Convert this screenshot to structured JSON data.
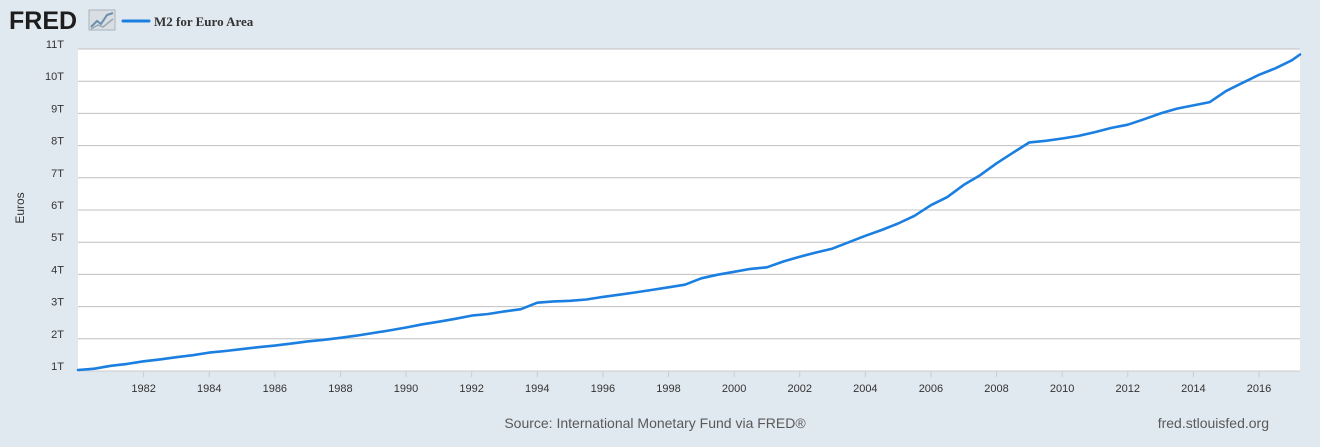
{
  "header": {
    "logo_text": "FRED",
    "legend_label": "M2 for Euro Area"
  },
  "footer": {
    "source": "Source: International Monetary Fund via FRED®",
    "site": "fred.stlouisfed.org"
  },
  "colors": {
    "series": "#1a7fe0",
    "background": "#e1e9f0",
    "plot": "#ffffff",
    "grid": "#c0c0c0"
  },
  "chart_data": {
    "type": "line",
    "title": "",
    "xlabel": "",
    "ylabel": "Euros",
    "xlim": [
      1980.0,
      2017.25
    ],
    "ylim": [
      1,
      11
    ],
    "y_ticks": [
      {
        "value": 1,
        "label": "1T"
      },
      {
        "value": 2,
        "label": "2T"
      },
      {
        "value": 3,
        "label": "3T"
      },
      {
        "value": 4,
        "label": "4T"
      },
      {
        "value": 5,
        "label": "5T"
      },
      {
        "value": 6,
        "label": "6T"
      },
      {
        "value": 7,
        "label": "7T"
      },
      {
        "value": 8,
        "label": "8T"
      },
      {
        "value": 9,
        "label": "9T"
      },
      {
        "value": 10,
        "label": "10T"
      },
      {
        "value": 11,
        "label": "11T"
      }
    ],
    "x_ticks": [
      {
        "value": 1982,
        "label": "1982"
      },
      {
        "value": 1984,
        "label": "1984"
      },
      {
        "value": 1986,
        "label": "1986"
      },
      {
        "value": 1988,
        "label": "1988"
      },
      {
        "value": 1990,
        "label": "1990"
      },
      {
        "value": 1992,
        "label": "1992"
      },
      {
        "value": 1994,
        "label": "1994"
      },
      {
        "value": 1996,
        "label": "1996"
      },
      {
        "value": 1998,
        "label": "1998"
      },
      {
        "value": 2000,
        "label": "2000"
      },
      {
        "value": 2002,
        "label": "2002"
      },
      {
        "value": 2004,
        "label": "2004"
      },
      {
        "value": 2006,
        "label": "2006"
      },
      {
        "value": 2008,
        "label": "2008"
      },
      {
        "value": 2010,
        "label": "2010"
      },
      {
        "value": 2012,
        "label": "2012"
      },
      {
        "value": 2014,
        "label": "2014"
      },
      {
        "value": 2016,
        "label": "2016"
      }
    ],
    "grid": true,
    "legend": "top-left",
    "series": [
      {
        "name": "M2 for Euro Area",
        "color": "#1a7fe0",
        "x": [
          1980.0,
          1980.5,
          1981.0,
          1981.5,
          1982.0,
          1982.5,
          1983.0,
          1983.5,
          1984.0,
          1984.5,
          1985.0,
          1985.5,
          1986.0,
          1986.5,
          1987.0,
          1987.5,
          1988.0,
          1988.5,
          1989.0,
          1989.5,
          1990.0,
          1990.5,
          1991.0,
          1991.5,
          1992.0,
          1992.5,
          1993.0,
          1993.5,
          1994.0,
          1994.5,
          1995.0,
          1995.5,
          1996.0,
          1996.5,
          1997.0,
          1997.5,
          1998.0,
          1998.5,
          1999.0,
          1999.5,
          2000.0,
          2000.5,
          2001.0,
          2001.5,
          2002.0,
          2002.5,
          2003.0,
          2003.5,
          2004.0,
          2004.5,
          2005.0,
          2005.5,
          2006.0,
          2006.5,
          2007.0,
          2007.5,
          2008.0,
          2008.5,
          2009.0,
          2009.5,
          2010.0,
          2010.5,
          2011.0,
          2011.5,
          2012.0,
          2012.5,
          2013.0,
          2013.5,
          2014.0,
          2014.5,
          2015.0,
          2015.5,
          2016.0,
          2016.5,
          2017.0,
          2017.25
        ],
        "values": [
          1.03,
          1.07,
          1.16,
          1.22,
          1.3,
          1.36,
          1.43,
          1.49,
          1.57,
          1.62,
          1.68,
          1.74,
          1.79,
          1.85,
          1.92,
          1.97,
          2.03,
          2.1,
          2.18,
          2.26,
          2.35,
          2.45,
          2.53,
          2.62,
          2.72,
          2.77,
          2.85,
          2.92,
          3.12,
          3.16,
          3.18,
          3.22,
          3.3,
          3.37,
          3.44,
          3.52,
          3.6,
          3.68,
          3.88,
          3.99,
          4.08,
          4.17,
          4.22,
          4.4,
          4.55,
          4.68,
          4.8,
          5.0,
          5.2,
          5.38,
          5.58,
          5.82,
          6.15,
          6.4,
          6.78,
          7.08,
          7.45,
          7.78,
          8.1,
          8.15,
          8.22,
          8.3,
          8.42,
          8.55,
          8.65,
          8.82,
          9.0,
          9.15,
          9.25,
          9.35,
          9.7,
          9.95,
          10.2,
          10.4,
          10.65,
          10.83
        ]
      }
    ]
  }
}
